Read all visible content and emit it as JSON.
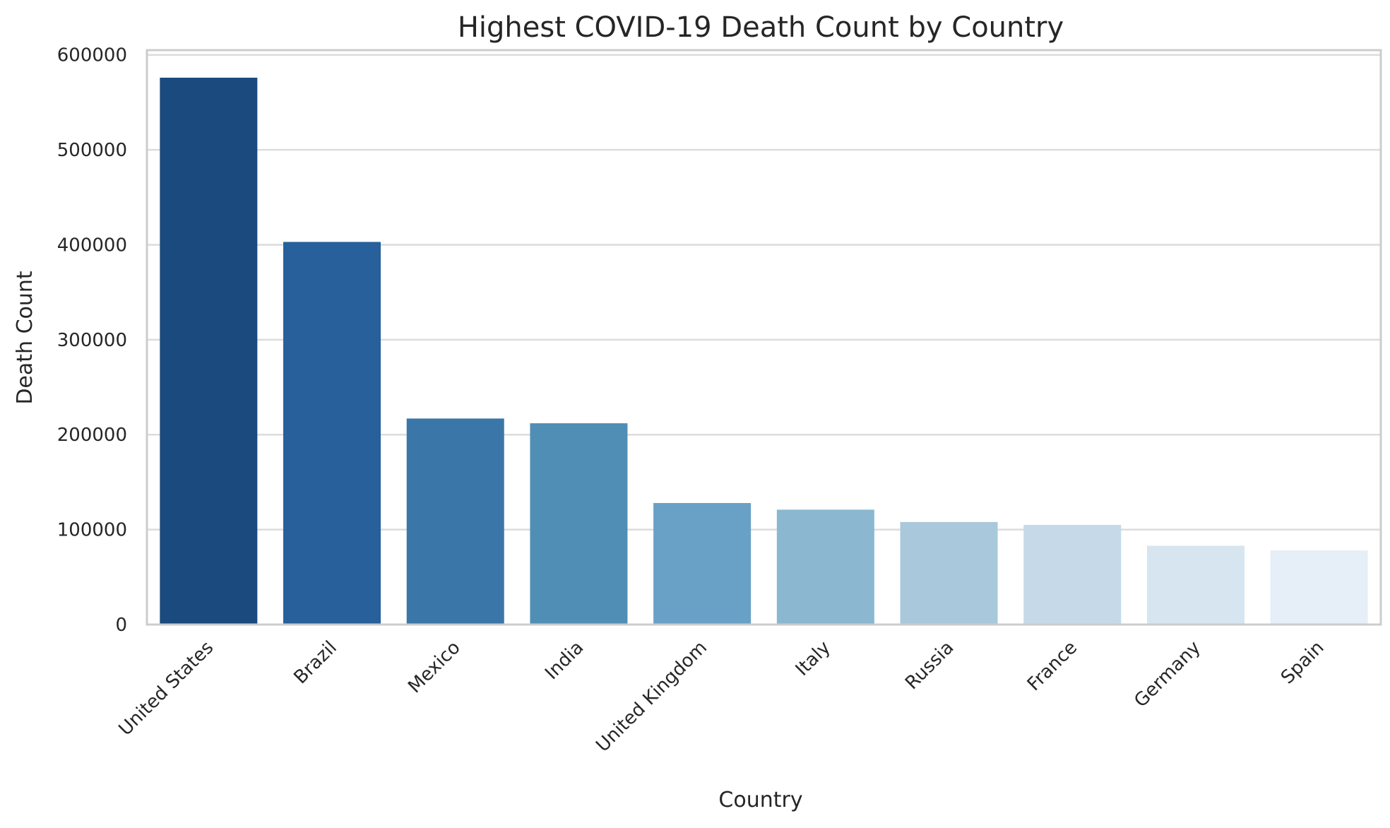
{
  "chart_data": {
    "type": "bar",
    "title": "Highest COVID-19 Death Count by Country",
    "xlabel": "Country",
    "ylabel": "Death Count",
    "categories": [
      "United States",
      "Brazil",
      "Mexico",
      "India",
      "United Kingdom",
      "Italy",
      "Russia",
      "France",
      "Germany",
      "Spain"
    ],
    "values": [
      576000,
      403000,
      217000,
      212000,
      128000,
      121000,
      108000,
      105000,
      83000,
      78000
    ],
    "colors": [
      "#1b4a7e",
      "#27609a",
      "#3a77a8",
      "#518eb6",
      "#69a1c6",
      "#8bb7d0",
      "#a9c8dc",
      "#c5d9e8",
      "#d7e5f0",
      "#e6eef7"
    ],
    "yticks": [
      0,
      100000,
      200000,
      300000,
      400000,
      500000,
      600000
    ],
    "ylim": [
      0,
      605000
    ],
    "grid": true,
    "gridColor": "#dcdcdc",
    "spineColor": "#cccccc",
    "textColor": "#262626"
  }
}
